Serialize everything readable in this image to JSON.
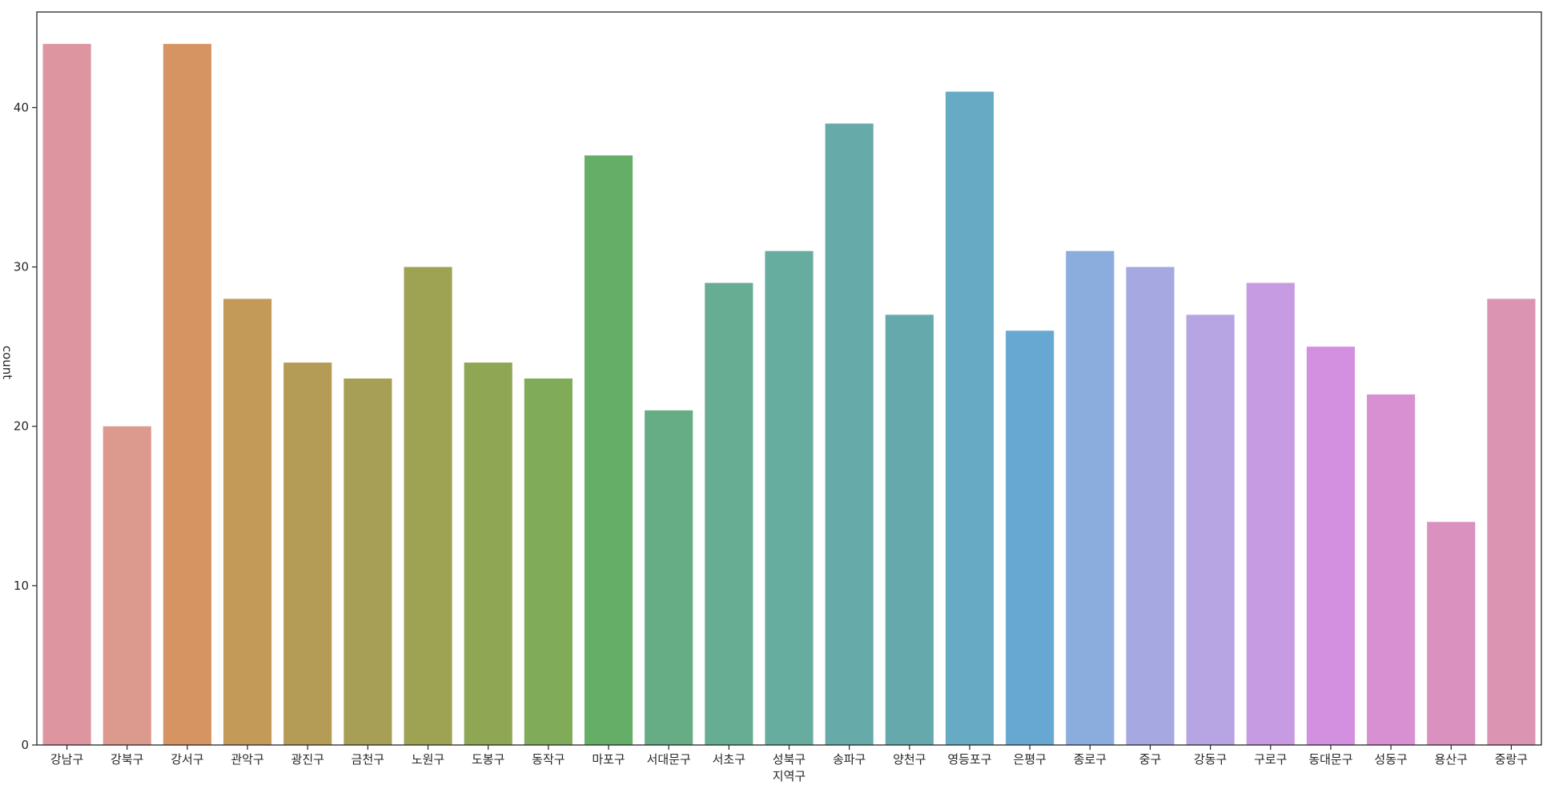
{
  "chart_data": {
    "type": "bar",
    "title": "",
    "xlabel": "지역구",
    "ylabel": "count",
    "ylim": [
      0,
      46
    ],
    "yticks": [
      0,
      10,
      20,
      30,
      40
    ],
    "grid": false,
    "categories": [
      "강남구",
      "강북구",
      "강서구",
      "관악구",
      "광진구",
      "금천구",
      "노원구",
      "도봉구",
      "동작구",
      "마포구",
      "서대문구",
      "서초구",
      "성북구",
      "송파구",
      "양천구",
      "영등포구",
      "은평구",
      "종로구",
      "중구",
      "강동구",
      "구로구",
      "동대문구",
      "성동구",
      "용산구",
      "중랑구"
    ],
    "values": [
      44,
      20,
      44,
      28,
      24,
      23,
      30,
      24,
      23,
      37,
      21,
      29,
      31,
      39,
      27,
      41,
      26,
      31,
      30,
      27,
      29,
      25,
      22,
      14,
      28
    ],
    "colors": [
      "#dd96a0",
      "#dc9a8e",
      "#d69462",
      "#c49a59",
      "#b49c57",
      "#a69f55",
      "#9ea353",
      "#8fa655",
      "#80ab58",
      "#65ae68",
      "#66ac85",
      "#66ad93",
      "#66ad9f",
      "#66aaa9",
      "#65a9ad",
      "#66aac4",
      "#67a8d2",
      "#8badde",
      "#a5a8e1",
      "#b6a5e2",
      "#c79be1",
      "#d490e0",
      "#d890d3",
      "#db91c0",
      "#dc94b3"
    ]
  }
}
